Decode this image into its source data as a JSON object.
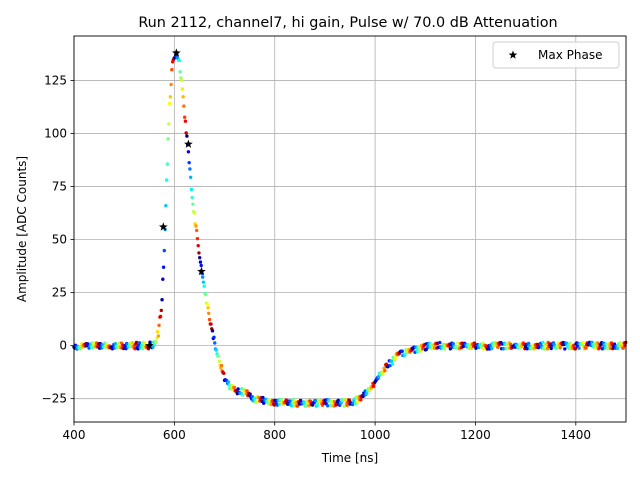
{
  "chart_data": {
    "type": "scatter",
    "title": "Run 2112, channel7, hi gain, Pulse w/ 70.0 dB Attenuation",
    "xlabel": "Time [ns]",
    "ylabel": "Amplitude [ADC Counts]",
    "xlim": [
      400,
      1500
    ],
    "ylim": [
      -36,
      146
    ],
    "xticks": [
      400,
      600,
      800,
      1000,
      1200,
      1400
    ],
    "yticks": [
      -25,
      0,
      25,
      50,
      75,
      100,
      125
    ],
    "grid": true,
    "legend": {
      "position": "top-right",
      "entries": [
        "Max Phase"
      ]
    },
    "colormap": "jet",
    "waveform_points": [
      [
        400,
        0
      ],
      [
        440,
        0
      ],
      [
        480,
        0
      ],
      [
        520,
        0
      ],
      [
        550,
        0
      ],
      [
        560,
        1
      ],
      [
        568,
        6
      ],
      [
        575,
        20
      ],
      [
        580,
        45
      ],
      [
        585,
        80
      ],
      [
        590,
        112
      ],
      [
        596,
        132
      ],
      [
        603,
        138
      ],
      [
        610,
        134
      ],
      [
        616,
        120
      ],
      [
        622,
        105
      ],
      [
        630,
        85
      ],
      [
        638,
        65
      ],
      [
        646,
        50
      ],
      [
        654,
        36
      ],
      [
        662,
        24
      ],
      [
        670,
        12
      ],
      [
        680,
        2
      ],
      [
        690,
        -8
      ],
      [
        700,
        -15
      ],
      [
        710,
        -19
      ],
      [
        725,
        -21
      ],
      [
        740,
        -22
      ],
      [
        760,
        -25
      ],
      [
        780,
        -26
      ],
      [
        820,
        -27
      ],
      [
        860,
        -27
      ],
      [
        900,
        -27
      ],
      [
        940,
        -27
      ],
      [
        960,
        -26
      ],
      [
        975,
        -24
      ],
      [
        990,
        -20
      ],
      [
        1000,
        -17
      ],
      [
        1015,
        -12
      ],
      [
        1030,
        -8
      ],
      [
        1045,
        -5
      ],
      [
        1060,
        -3
      ],
      [
        1080,
        -1.5
      ],
      [
        1100,
        -0.5
      ],
      [
        1120,
        0
      ],
      [
        1200,
        0
      ],
      [
        1300,
        0
      ],
      [
        1400,
        0
      ],
      [
        1500,
        0
      ]
    ],
    "max_phase_points": [
      {
        "x": 550,
        "y": 0
      },
      {
        "x": 578,
        "y": 56
      },
      {
        "x": 604,
        "y": 138
      },
      {
        "x": 628,
        "y": 95
      },
      {
        "x": 654,
        "y": 35
      }
    ]
  }
}
